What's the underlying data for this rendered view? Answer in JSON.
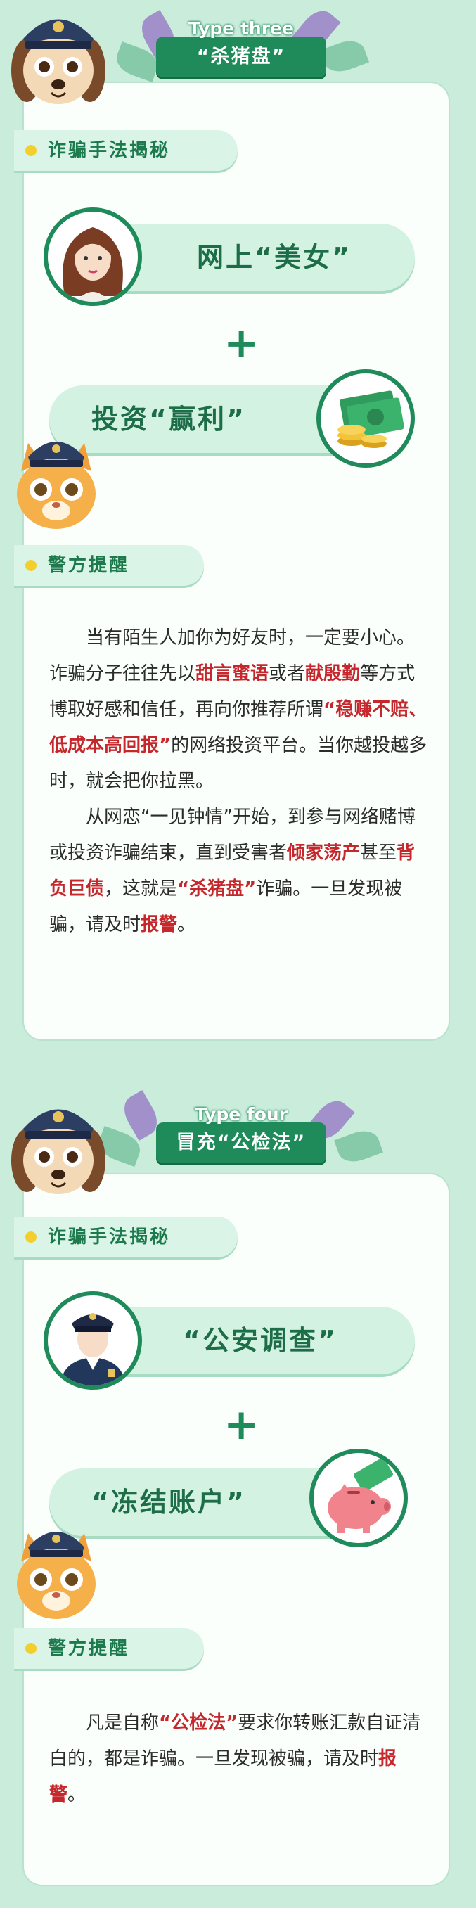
{
  "section1": {
    "type_label": "Type three",
    "title": "“杀猪盘”",
    "method_tag": "诈骗手法揭秘",
    "pill1": "网上“美女”",
    "plus": "+",
    "pill2": "投资“赢利”",
    "warn_tag": "警方提醒",
    "para1": [
      {
        "t": "当有陌生人加你为好友时，一定要小心。诈骗分子往往先以"
      },
      {
        "t": "甜言蜜语",
        "red": true
      },
      {
        "t": "或者"
      },
      {
        "t": "献殷勤",
        "red": true
      },
      {
        "t": "等方式博取好感和信任，再向你推荐所谓"
      },
      {
        "t": "“稳赚不赔、低成本高回报”",
        "red": true
      },
      {
        "t": "的网络投资平台。当你越投越多时，就会把你拉黑。"
      }
    ],
    "para2": [
      {
        "t": "从网恋“一见钟情”开始，到参与网络赌博或投资诈骗结束，直到受害者"
      },
      {
        "t": "倾家荡产",
        "red": true
      },
      {
        "t": "甚至"
      },
      {
        "t": "背负巨债",
        "red": true
      },
      {
        "t": "，这就是"
      },
      {
        "t": "“杀猪盘”",
        "red": true
      },
      {
        "t": "诈骗。一旦发现被骗，请及时"
      },
      {
        "t": "报警",
        "red": true
      },
      {
        "t": "。"
      }
    ]
  },
  "section2": {
    "type_label": "Type four",
    "title": "冒充“公检法”",
    "method_tag": "诈骗手法揭秘",
    "pill1": "“公安调查”",
    "plus": "+",
    "pill2": "“冻结账户”",
    "warn_tag": "警方提醒",
    "para1": [
      {
        "t": "凡是自称"
      },
      {
        "t": "“公检法”",
        "red": true
      },
      {
        "t": "要求你转账汇款自证清白的，都是诈骗。一旦发现被骗，请及时"
      },
      {
        "t": "报警",
        "red": true
      },
      {
        "t": "。"
      }
    ]
  },
  "colors": {
    "background": "#c9ecdb",
    "accent_green": "#1f8a5a",
    "highlight_red": "#c5272c",
    "dot_yellow": "#f3cf2d"
  },
  "icons": [
    "police-dog-mascot-icon",
    "police-cat-mascot-icon",
    "woman-avatar-icon",
    "money-coins-icon",
    "police-officer-icon",
    "piggy-bank-icon"
  ]
}
